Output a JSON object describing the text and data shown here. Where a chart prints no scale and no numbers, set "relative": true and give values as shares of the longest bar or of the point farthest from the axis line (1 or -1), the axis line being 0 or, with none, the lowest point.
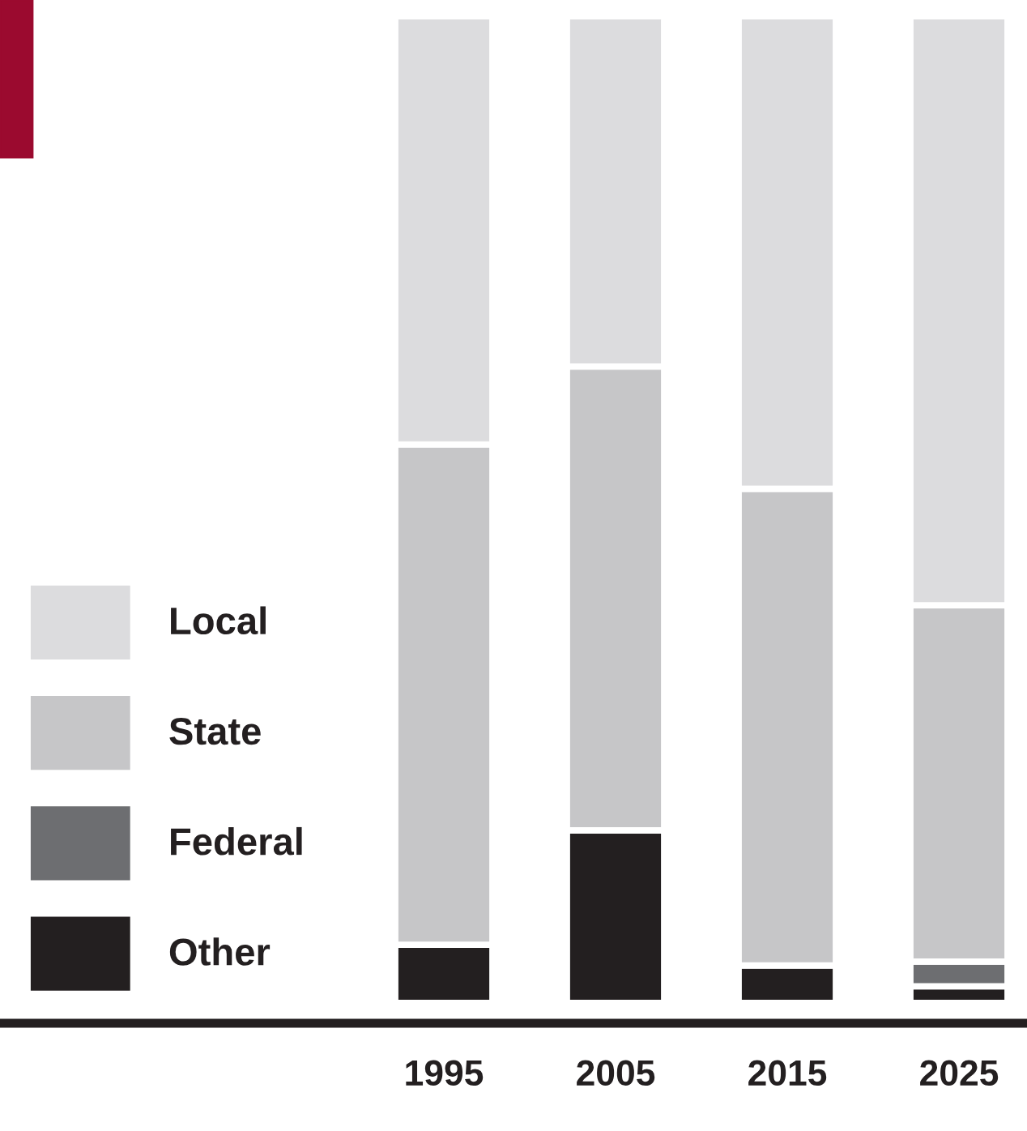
{
  "chart_data": {
    "type": "bar",
    "stacked": true,
    "relative": true,
    "legend": "bottom left",
    "grid": false,
    "categories": [
      "1995",
      "2005",
      "2015",
      "2025"
    ],
    "series": [
      {
        "name": "Other",
        "color": "#231f20",
        "values": [
          0.059,
          0.175,
          0.038,
          0.017
        ]
      },
      {
        "name": "Federal",
        "color": "#6d6e71",
        "values": [
          0,
          0,
          0,
          0.025
        ]
      },
      {
        "name": "State",
        "color": "#c6c6c8",
        "values": [
          0.507,
          0.47,
          0.483,
          0.361
        ]
      },
      {
        "name": "Local",
        "color": "#dcdcde",
        "values": [
          0.434,
          0.355,
          0.479,
          0.597
        ]
      }
    ]
  }
}
